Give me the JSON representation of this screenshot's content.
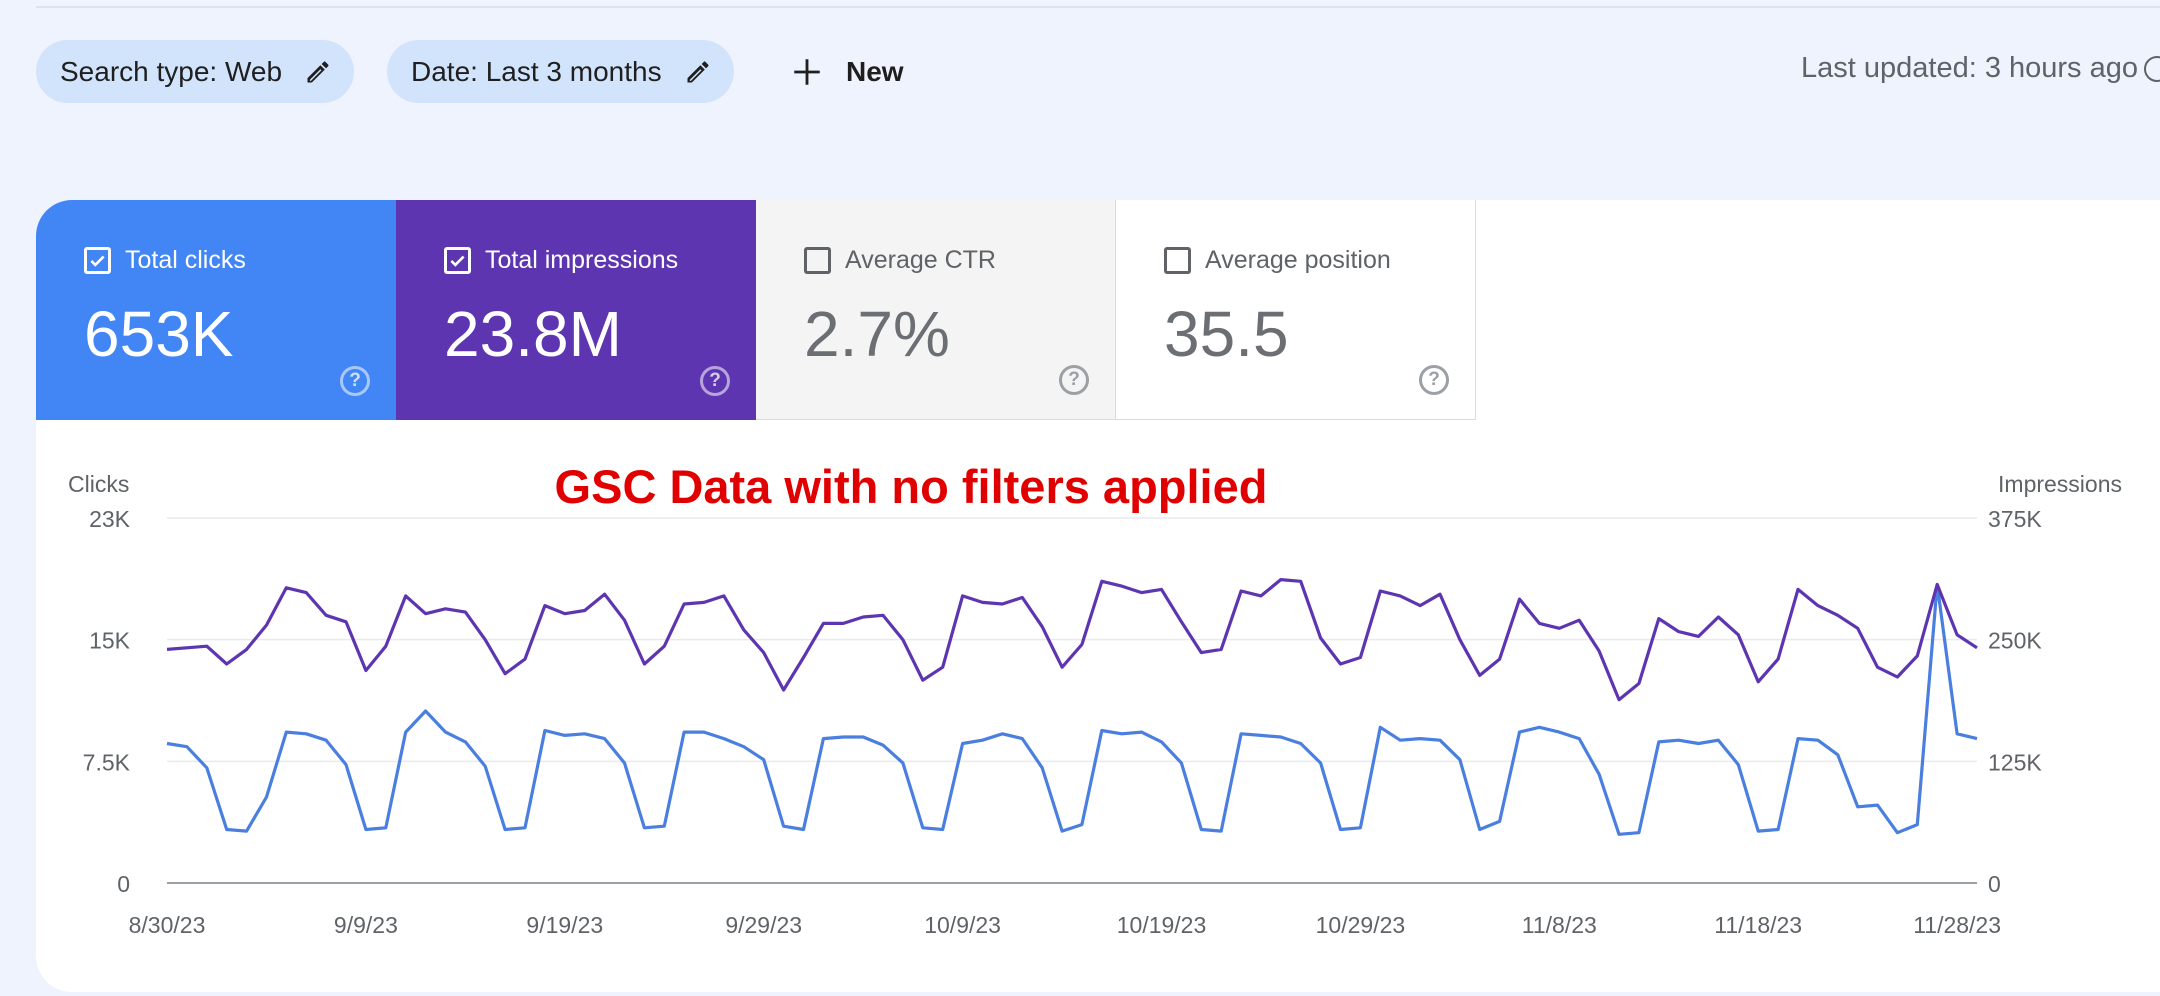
{
  "toolbar": {
    "search_type_chip": "Search type: Web",
    "date_chip": "Date: Last 3 months",
    "new_label": "New",
    "last_updated": "Last updated: 3 hours ago"
  },
  "metrics": [
    {
      "label": "Total clicks",
      "value": "653K",
      "checked": true,
      "color": "#4285f4"
    },
    {
      "label": "Total impressions",
      "value": "23.8M",
      "checked": true,
      "color": "#5e35b1"
    },
    {
      "label": "Average CTR",
      "value": "2.7%",
      "checked": false
    },
    {
      "label": "Average position",
      "value": "35.5",
      "checked": false
    }
  ],
  "chart_data": {
    "type": "line",
    "annotation": "GSC Data with no filters applied",
    "annotation_color": "#e00000",
    "left_axis": {
      "label": "Clicks",
      "ticks": [
        {
          "label": "0",
          "value": 0
        },
        {
          "label": "7.5K",
          "value": 7500
        },
        {
          "label": "15K",
          "value": 15000
        },
        {
          "label": "23K",
          "value": 22500
        }
      ],
      "range": [
        0,
        22500
      ]
    },
    "right_axis": {
      "label": "Impressions",
      "ticks": [
        {
          "label": "0",
          "value": 0
        },
        {
          "label": "125K",
          "value": 125000
        },
        {
          "label": "250K",
          "value": 250000
        },
        {
          "label": "375K",
          "value": 375000
        }
      ],
      "range": [
        0,
        375000
      ]
    },
    "x_tick_labels": [
      "8/30/23",
      "9/9/23",
      "9/19/23",
      "9/29/23",
      "10/9/23",
      "10/19/23",
      "10/29/23",
      "11/8/23",
      "11/18/23",
      "11/28/23"
    ],
    "x_start": "8/30/23",
    "x_end": "11/29/23",
    "series": [
      {
        "name": "Clicks",
        "axis": "left",
        "color": "#4a7fe0",
        "values": [
          8600,
          8400,
          7100,
          3300,
          3200,
          5300,
          9300,
          9200,
          8800,
          7300,
          3300,
          3400,
          9300,
          10600,
          9300,
          8700,
          7200,
          3300,
          3400,
          9400,
          9100,
          9200,
          8900,
          7400,
          3400,
          3500,
          9300,
          9300,
          8900,
          8400,
          7600,
          3500,
          3300,
          8900,
          9000,
          9000,
          8500,
          7400,
          3400,
          3300,
          8600,
          8800,
          9200,
          8900,
          7100,
          3200,
          3600,
          9400,
          9200,
          9300,
          8700,
          7400,
          3300,
          3200,
          9200,
          9100,
          9000,
          8600,
          7400,
          3300,
          3400,
          9600,
          8800,
          8900,
          8800,
          7600,
          3300,
          3800,
          9300,
          9600,
          9300,
          8900,
          6700,
          3000,
          3100,
          8700,
          8800,
          8600,
          8800,
          7300,
          3200,
          3300,
          8900,
          8800,
          7900,
          4700,
          4800,
          3100,
          3600,
          18400,
          9200,
          8900
        ]
      },
      {
        "name": "Impressions",
        "axis": "left",
        "color": "#5e35b1",
        "values": [
          14400,
          14500,
          14600,
          13500,
          14400,
          15900,
          18200,
          17900,
          16500,
          16100,
          13100,
          14600,
          17700,
          16600,
          16900,
          16700,
          15000,
          12900,
          13800,
          17100,
          16600,
          16800,
          17800,
          16200,
          13500,
          14600,
          17200,
          17300,
          17700,
          15600,
          14200,
          11900,
          13900,
          16000,
          16000,
          16400,
          16500,
          15000,
          12500,
          13300,
          17700,
          17300,
          17200,
          17600,
          15800,
          13300,
          14700,
          18600,
          18300,
          17900,
          18100,
          16100,
          14200,
          14400,
          18000,
          17700,
          18700,
          18600,
          15100,
          13500,
          13900,
          18000,
          17700,
          17100,
          17800,
          15000,
          12800,
          13800,
          17500,
          16000,
          15700,
          16200,
          14300,
          11300,
          12300,
          16300,
          15500,
          15200,
          16400,
          15300,
          12400,
          13800,
          18100,
          17100,
          16500,
          15700,
          13300,
          12700,
          14000,
          18400,
          15300,
          14500
        ]
      }
    ]
  }
}
